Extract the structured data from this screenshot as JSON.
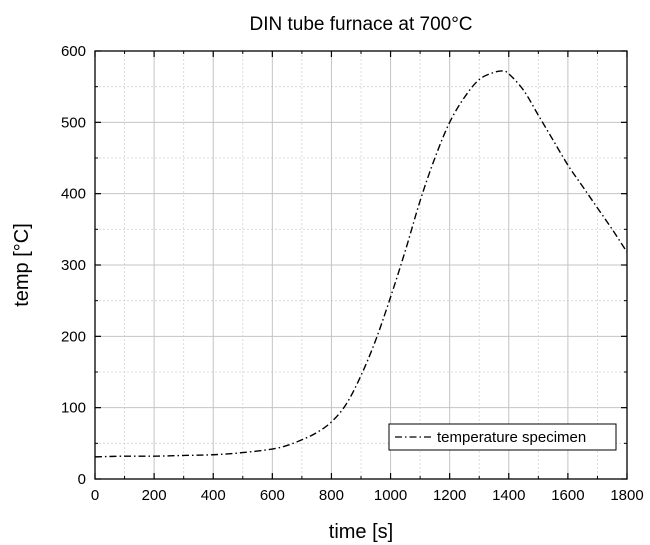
{
  "chart_data": {
    "type": "line",
    "title": "DIN tube furnace at 700°C",
    "xlabel": "time [s]",
    "ylabel": "temp [°C]",
    "xlim": [
      0,
      1800
    ],
    "ylim": [
      0,
      600
    ],
    "xticks": [
      0,
      200,
      400,
      600,
      800,
      1000,
      1200,
      1400,
      1600,
      1800
    ],
    "yticks": [
      0,
      100,
      200,
      300,
      400,
      500,
      600
    ],
    "grid": true,
    "legend_position": "bottom-right",
    "series": [
      {
        "name": "temperature specimen",
        "line_style": "dash-dot",
        "color": "#000000",
        "x": [
          0,
          100,
          200,
          300,
          400,
          500,
          600,
          650,
          700,
          750,
          800,
          850,
          900,
          950,
          1000,
          1050,
          1100,
          1150,
          1200,
          1250,
          1300,
          1350,
          1380,
          1400,
          1450,
          1500,
          1550,
          1600,
          1650,
          1700,
          1750,
          1800
        ],
        "y": [
          31,
          32,
          32,
          33,
          34,
          37,
          42,
          47,
          55,
          65,
          80,
          105,
          145,
          195,
          255,
          320,
          390,
          450,
          500,
          535,
          560,
          570,
          572,
          568,
          545,
          510,
          475,
          440,
          410,
          380,
          350,
          318
        ]
      }
    ]
  }
}
